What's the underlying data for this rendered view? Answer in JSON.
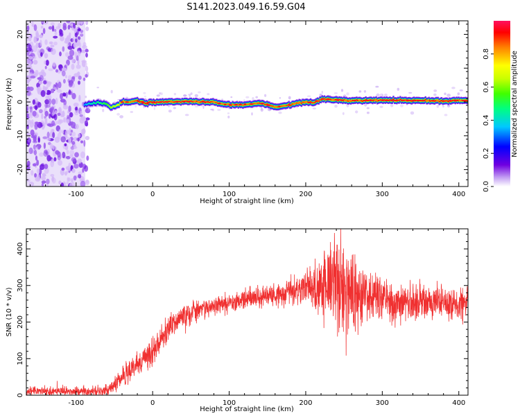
{
  "title": "S141.2023.049.16.59.G04",
  "chart_data": [
    {
      "type": "heatmap",
      "xlabel": "Height of straight line (km)",
      "ylabel": "Frequency (Hz)",
      "xlim": [
        -165,
        412
      ],
      "ylim": [
        -25,
        24
      ],
      "x_ticks": [
        -100,
        0,
        100,
        200,
        300,
        400
      ],
      "y_ticks": [
        20,
        10,
        0,
        -10,
        -20
      ],
      "noise_band_x": [
        -165,
        -88
      ],
      "ridge": {
        "x": [
          -90,
          -80,
          -70,
          -62,
          -55,
          -48,
          -40,
          -30,
          -20,
          -10,
          0,
          20,
          40,
          60,
          80,
          90,
          100,
          110,
          120,
          130,
          140,
          150,
          160,
          170,
          180,
          190,
          200,
          210,
          220,
          240,
          260,
          280,
          300,
          320,
          340,
          360,
          380,
          400,
          412
        ],
        "freq": [
          -0.8,
          -0.3,
          -0.2,
          -0.5,
          -1.8,
          -1.0,
          0.0,
          0.0,
          0.3,
          -0.4,
          0.0,
          0.0,
          0.1,
          0.1,
          0.0,
          -0.6,
          -0.9,
          -0.8,
          -0.7,
          -0.6,
          -0.3,
          -0.9,
          -1.5,
          -1.2,
          -0.8,
          -0.3,
          0.0,
          -0.2,
          0.9,
          0.6,
          0.4,
          0.5,
          0.5,
          0.5,
          0.4,
          0.4,
          0.3,
          0.4,
          0.4
        ],
        "amplitude": [
          0.35,
          0.45,
          0.5,
          0.55,
          0.65,
          0.7,
          0.8,
          0.85,
          0.9,
          0.92,
          0.95,
          0.95,
          0.95,
          0.95,
          0.9,
          0.85,
          0.85,
          0.85,
          0.85,
          0.88,
          0.9,
          0.9,
          0.88,
          0.88,
          0.9,
          0.9,
          0.9,
          0.9,
          0.9,
          0.92,
          0.92,
          0.92,
          0.92,
          0.92,
          0.92,
          0.92,
          0.92,
          0.92,
          0.92
        ]
      },
      "colorbar": {
        "label": "Normalized spectral amplitude",
        "range": [
          0,
          1
        ],
        "ticks": [
          0.0,
          0.2,
          0.4,
          0.6,
          0.8
        ],
        "colors": [
          "#ffffff",
          "#c8a8f4",
          "#7000e0",
          "#0000ff",
          "#00c8ff",
          "#00ff80",
          "#40ff00",
          "#c8ff00",
          "#ffff00",
          "#ff8000",
          "#ff0000",
          "#ff1060"
        ]
      }
    },
    {
      "type": "line",
      "xlabel": "Height of straight line (km)",
      "ylabel": "SNR (10 * v/v)",
      "xlim": [
        -165,
        412
      ],
      "ylim": [
        0,
        455
      ],
      "x_ticks": [
        -100,
        0,
        100,
        200,
        300,
        400
      ],
      "y_ticks": [
        0,
        100,
        200,
        300,
        400
      ],
      "color": "#f03030",
      "series_trend": {
        "x": [
          -165,
          -110,
          -60,
          -40,
          -20,
          0,
          10,
          20,
          40,
          60,
          80,
          100,
          120,
          140,
          160,
          180,
          200,
          220,
          240,
          260,
          280,
          300,
          320,
          340,
          360,
          380,
          400,
          412
        ],
        "y": [
          12,
          10,
          12,
          50,
          85,
          120,
          150,
          185,
          215,
          235,
          245,
          255,
          260,
          268,
          275,
          282,
          290,
          298,
          295,
          280,
          270,
          262,
          258,
          255,
          252,
          250,
          248,
          248
        ],
        "noise": [
          6,
          6,
          8,
          14,
          18,
          20,
          20,
          18,
          16,
          15,
          14,
          14,
          14,
          14,
          15,
          18,
          22,
          45,
          75,
          55,
          38,
          30,
          27,
          25,
          24,
          22,
          22,
          22
        ]
      }
    }
  ]
}
